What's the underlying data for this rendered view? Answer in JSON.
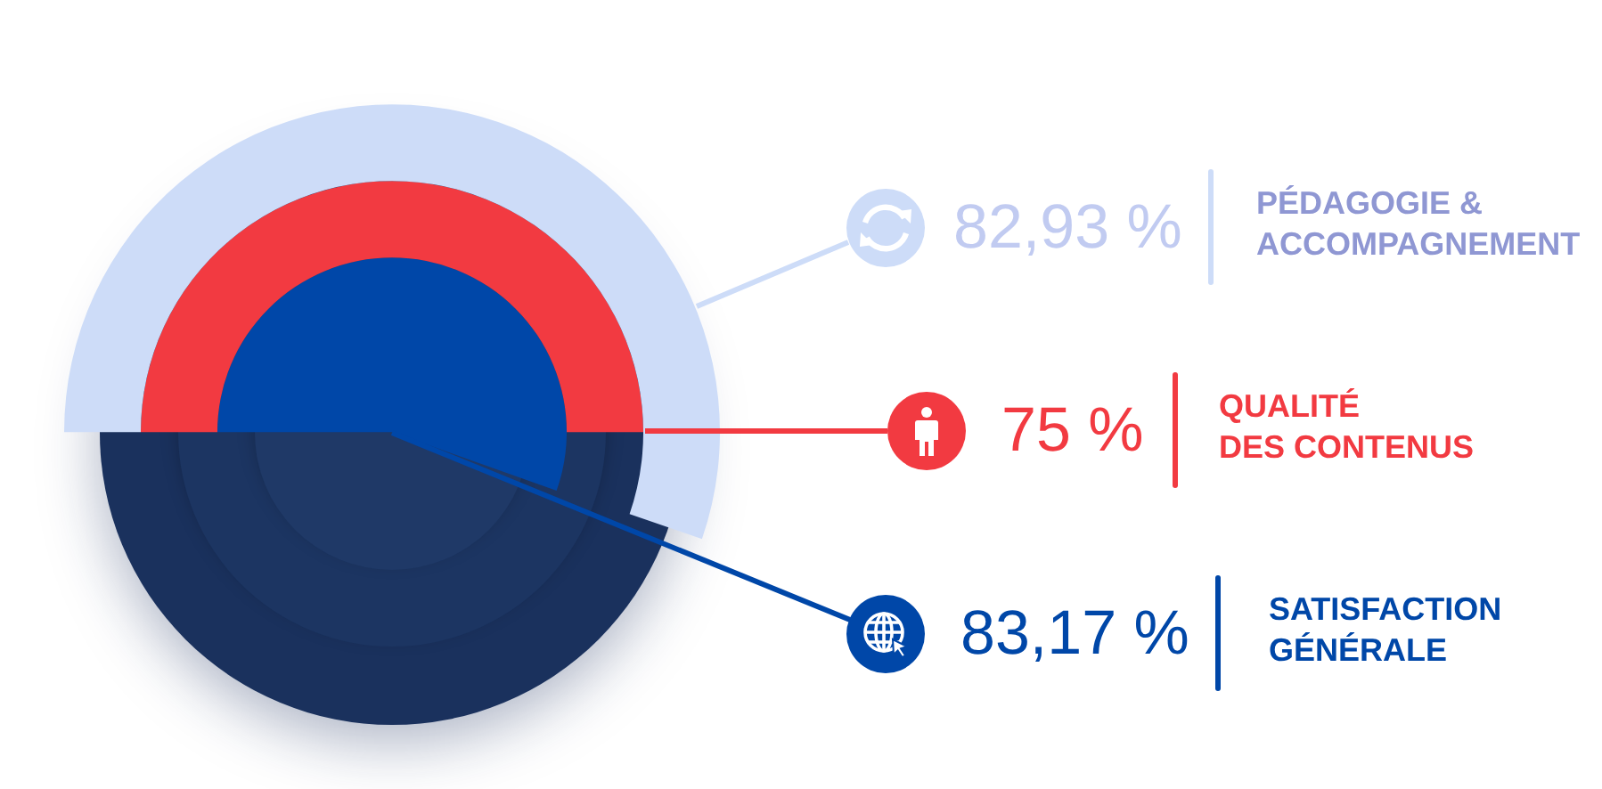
{
  "chart_data": {
    "type": "other",
    "categories": [
      "PÉDAGOGIE &\nACCOMPAGNEMENT",
      "QUALITÉ\nDES CONTENUS",
      "SATISFACTION\nGÉNÉRALE"
    ],
    "values": [
      82.93,
      75,
      83.17
    ],
    "value_labels": [
      "82,93 %",
      "75 %",
      "83,17 %"
    ],
    "colors": [
      "#cddcf8",
      "#f23a41",
      "#0047a8"
    ]
  }
}
